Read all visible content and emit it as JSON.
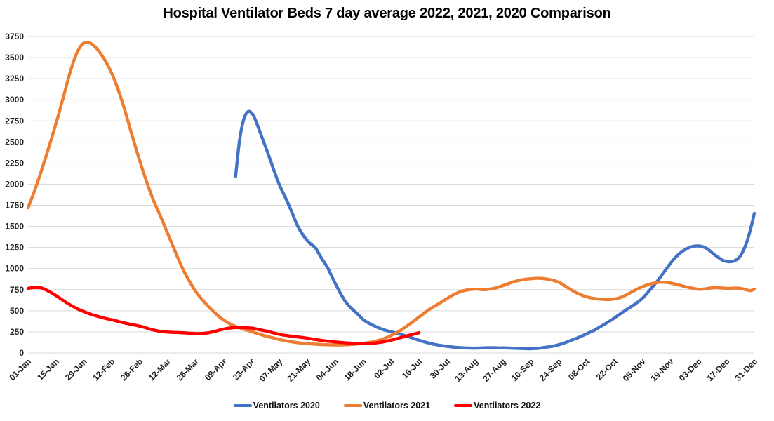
{
  "chart_data": {
    "type": "line",
    "title": "Hospital Ventilator Beds 7 day average 2022, 2021, 2020 Comparison",
    "xlabel": "",
    "ylabel": "",
    "ylim": [
      0,
      3750
    ],
    "y_tick_step": 250,
    "y_ticks": [
      0,
      250,
      500,
      750,
      1000,
      1250,
      1500,
      1750,
      2000,
      2250,
      2500,
      2750,
      3000,
      3250,
      3500,
      3750
    ],
    "x_tick_labels": [
      "01-Jan",
      "15-Jan",
      "29-Jan",
      "12-Feb",
      "26-Feb",
      "12-Mar",
      "26-Mar",
      "09-Apr",
      "23-Apr",
      "07-May",
      "21-May",
      "04-Jun",
      "18-Jun",
      "02-Jul",
      "16-Jul",
      "30-Jul",
      "13-Aug",
      "27-Aug",
      "10-Sep",
      "24-Sep",
      "08-Oct",
      "22-Oct",
      "05-Nov",
      "19-Nov",
      "03-Dec",
      "17-Dec",
      "31-Dec"
    ],
    "grid": "horizontal",
    "gridline_color": "#d9d9d9",
    "label_color": "#1f1f1f",
    "background_color": "#ffffff",
    "legend_position": "bottom-center",
    "series": [
      {
        "name": "Ventilators 2020",
        "color": "#4472C4",
        "points": [
          [
            "15-Apr",
            2090
          ],
          [
            "17-Apr",
            2520
          ],
          [
            "19-Apr",
            2760
          ],
          [
            "21-Apr",
            2855
          ],
          [
            "23-Apr",
            2845
          ],
          [
            "25-Apr",
            2760
          ],
          [
            "28-Apr",
            2570
          ],
          [
            "01-May",
            2380
          ],
          [
            "04-May",
            2180
          ],
          [
            "07-May",
            1990
          ],
          [
            "10-May",
            1840
          ],
          [
            "13-May",
            1680
          ],
          [
            "16-May",
            1510
          ],
          [
            "19-May",
            1390
          ],
          [
            "22-May",
            1305
          ],
          [
            "25-May",
            1245
          ],
          [
            "28-May",
            1125
          ],
          [
            "31-May",
            1015
          ],
          [
            "03-Jun",
            870
          ],
          [
            "06-Jun",
            730
          ],
          [
            "09-Jun",
            610
          ],
          [
            "12-Jun",
            530
          ],
          [
            "15-Jun",
            465
          ],
          [
            "18-Jun",
            395
          ],
          [
            "21-Jun",
            350
          ],
          [
            "24-Jun",
            315
          ],
          [
            "27-Jun",
            285
          ],
          [
            "30-Jun",
            262
          ],
          [
            "03-Jul",
            245
          ],
          [
            "06-Jul",
            225
          ],
          [
            "09-Jul",
            205
          ],
          [
            "12-Jul",
            182
          ],
          [
            "16-Jul",
            150
          ],
          [
            "20-Jul",
            122
          ],
          [
            "24-Jul",
            100
          ],
          [
            "28-Jul",
            85
          ],
          [
            "01-Aug",
            72
          ],
          [
            "05-Aug",
            64
          ],
          [
            "09-Aug",
            59
          ],
          [
            "13-Aug",
            57
          ],
          [
            "17-Aug",
            60
          ],
          [
            "21-Aug",
            63
          ],
          [
            "25-Aug",
            60
          ],
          [
            "29-Aug",
            60
          ],
          [
            "02-Sep",
            56
          ],
          [
            "06-Sep",
            52
          ],
          [
            "10-Sep",
            50
          ],
          [
            "14-Sep",
            56
          ],
          [
            "18-Sep",
            70
          ],
          [
            "22-Sep",
            85
          ],
          [
            "26-Sep",
            112
          ],
          [
            "30-Sep",
            148
          ],
          [
            "04-Oct",
            185
          ],
          [
            "08-Oct",
            228
          ],
          [
            "12-Oct",
            272
          ],
          [
            "16-Oct",
            328
          ],
          [
            "20-Oct",
            385
          ],
          [
            "24-Oct",
            450
          ],
          [
            "28-Oct",
            515
          ],
          [
            "01-Nov",
            575
          ],
          [
            "05-Nov",
            650
          ],
          [
            "09-Nov",
            755
          ],
          [
            "13-Nov",
            870
          ],
          [
            "17-Nov",
            1000
          ],
          [
            "21-Nov",
            1120
          ],
          [
            "25-Nov",
            1205
          ],
          [
            "29-Nov",
            1255
          ],
          [
            "03-Dec",
            1268
          ],
          [
            "07-Dec",
            1240
          ],
          [
            "11-Dec",
            1165
          ],
          [
            "15-Dec",
            1100
          ],
          [
            "18-Dec",
            1082
          ],
          [
            "21-Dec",
            1092
          ],
          [
            "24-Dec",
            1150
          ],
          [
            "27-Dec",
            1300
          ],
          [
            "29-Dec",
            1460
          ],
          [
            "31-Dec",
            1655
          ]
        ]
      },
      {
        "name": "Ventilators 2021",
        "color": "#ED7D31",
        "points": [
          [
            "01-Jan",
            1720
          ],
          [
            "04-Jan",
            1905
          ],
          [
            "07-Jan",
            2110
          ],
          [
            "10-Jan",
            2330
          ],
          [
            "13-Jan",
            2560
          ],
          [
            "16-Jan",
            2800
          ],
          [
            "19-Jan",
            3060
          ],
          [
            "22-Jan",
            3320
          ],
          [
            "25-Jan",
            3530
          ],
          [
            "28-Jan",
            3655
          ],
          [
            "31-Jan",
            3680
          ],
          [
            "03-Feb",
            3640
          ],
          [
            "06-Feb",
            3560
          ],
          [
            "09-Feb",
            3450
          ],
          [
            "12-Feb",
            3310
          ],
          [
            "15-Feb",
            3130
          ],
          [
            "18-Feb",
            2915
          ],
          [
            "21-Feb",
            2670
          ],
          [
            "24-Feb",
            2430
          ],
          [
            "27-Feb",
            2200
          ],
          [
            "02-Mar",
            1990
          ],
          [
            "05-Mar",
            1800
          ],
          [
            "08-Mar",
            1640
          ],
          [
            "11-Mar",
            1470
          ],
          [
            "14-Mar",
            1300
          ],
          [
            "17-Mar",
            1130
          ],
          [
            "20-Mar",
            975
          ],
          [
            "23-Mar",
            845
          ],
          [
            "26-Mar",
            730
          ],
          [
            "29-Mar",
            640
          ],
          [
            "01-Apr",
            560
          ],
          [
            "04-Apr",
            490
          ],
          [
            "07-Apr",
            425
          ],
          [
            "10-Apr",
            375
          ],
          [
            "13-Apr",
            335
          ],
          [
            "16-Apr",
            305
          ],
          [
            "19-Apr",
            282
          ],
          [
            "22-Apr",
            262
          ],
          [
            "25-Apr",
            238
          ],
          [
            "28-Apr",
            215
          ],
          [
            "01-May",
            195
          ],
          [
            "04-May",
            178
          ],
          [
            "07-May",
            160
          ],
          [
            "10-May",
            145
          ],
          [
            "13-May",
            132
          ],
          [
            "16-May",
            122
          ],
          [
            "19-May",
            115
          ],
          [
            "22-May",
            110
          ],
          [
            "25-May",
            104
          ],
          [
            "28-May",
            100
          ],
          [
            "31-May",
            97
          ],
          [
            "03-Jun",
            95
          ],
          [
            "06-Jun",
            95
          ],
          [
            "09-Jun",
            97
          ],
          [
            "12-Jun",
            101
          ],
          [
            "15-Jun",
            107
          ],
          [
            "18-Jun",
            115
          ],
          [
            "21-Jun",
            124
          ],
          [
            "24-Jun",
            138
          ],
          [
            "27-Jun",
            158
          ],
          [
            "30-Jun",
            185
          ],
          [
            "03-Jul",
            220
          ],
          [
            "06-Jul",
            258
          ],
          [
            "09-Jul",
            305
          ],
          [
            "12-Jul",
            355
          ],
          [
            "15-Jul",
            410
          ],
          [
            "18-Jul",
            462
          ],
          [
            "21-Jul",
            515
          ],
          [
            "24-Jul",
            558
          ],
          [
            "27-Jul",
            600
          ],
          [
            "30-Jul",
            645
          ],
          [
            "02-Aug",
            688
          ],
          [
            "05-Aug",
            720
          ],
          [
            "08-Aug",
            742
          ],
          [
            "11-Aug",
            753
          ],
          [
            "14-Aug",
            756
          ],
          [
            "17-Aug",
            750
          ],
          [
            "20-Aug",
            756
          ],
          [
            "23-Aug",
            768
          ],
          [
            "26-Aug",
            790
          ],
          [
            "29-Aug",
            815
          ],
          [
            "01-Sep",
            840
          ],
          [
            "04-Sep",
            860
          ],
          [
            "07-Sep",
            872
          ],
          [
            "10-Sep",
            880
          ],
          [
            "13-Sep",
            885
          ],
          [
            "16-Sep",
            882
          ],
          [
            "19-Sep",
            872
          ],
          [
            "22-Sep",
            855
          ],
          [
            "25-Sep",
            825
          ],
          [
            "28-Sep",
            780
          ],
          [
            "01-Oct",
            735
          ],
          [
            "04-Oct",
            700
          ],
          [
            "07-Oct",
            672
          ],
          [
            "10-Oct",
            653
          ],
          [
            "13-Oct",
            642
          ],
          [
            "16-Oct",
            636
          ],
          [
            "19-Oct",
            634
          ],
          [
            "22-Oct",
            640
          ],
          [
            "25-Oct",
            658
          ],
          [
            "28-Oct",
            690
          ],
          [
            "31-Oct",
            728
          ],
          [
            "03-Nov",
            765
          ],
          [
            "06-Nov",
            795
          ],
          [
            "09-Nov",
            818
          ],
          [
            "12-Nov",
            833
          ],
          [
            "15-Nov",
            838
          ],
          [
            "18-Nov",
            833
          ],
          [
            "21-Nov",
            818
          ],
          [
            "24-Nov",
            800
          ],
          [
            "27-Nov",
            782
          ],
          [
            "30-Nov",
            766
          ],
          [
            "03-Dec",
            755
          ],
          [
            "06-Dec",
            758
          ],
          [
            "09-Dec",
            770
          ],
          [
            "12-Dec",
            775
          ],
          [
            "15-Dec",
            770
          ],
          [
            "18-Dec",
            765
          ],
          [
            "21-Dec",
            768
          ],
          [
            "24-Dec",
            766
          ],
          [
            "27-Dec",
            748
          ],
          [
            "29-Dec",
            738
          ],
          [
            "31-Dec",
            755
          ]
        ]
      },
      {
        "name": "Ventilators 2022",
        "color": "#FF0000",
        "points": [
          [
            "01-Jan",
            765
          ],
          [
            "03-Jan",
            773
          ],
          [
            "05-Jan",
            775
          ],
          [
            "08-Jan",
            768
          ],
          [
            "11-Jan",
            735
          ],
          [
            "14-Jan",
            695
          ],
          [
            "17-Jan",
            648
          ],
          [
            "20-Jan",
            600
          ],
          [
            "23-Jan",
            558
          ],
          [
            "26-Jan",
            520
          ],
          [
            "29-Jan",
            490
          ],
          [
            "01-Feb",
            462
          ],
          [
            "04-Feb",
            440
          ],
          [
            "07-Feb",
            420
          ],
          [
            "10-Feb",
            403
          ],
          [
            "13-Feb",
            388
          ],
          [
            "16-Feb",
            368
          ],
          [
            "19-Feb",
            352
          ],
          [
            "22-Feb",
            337
          ],
          [
            "25-Feb",
            323
          ],
          [
            "28-Feb",
            305
          ],
          [
            "03-Mar",
            283
          ],
          [
            "06-Mar",
            266
          ],
          [
            "09-Mar",
            254
          ],
          [
            "12-Mar",
            247
          ],
          [
            "15-Mar",
            244
          ],
          [
            "18-Mar",
            241
          ],
          [
            "21-Mar",
            237
          ],
          [
            "24-Mar",
            232
          ],
          [
            "27-Mar",
            229
          ],
          [
            "30-Mar",
            232
          ],
          [
            "02-Apr",
            242
          ],
          [
            "05-Apr",
            258
          ],
          [
            "08-Apr",
            278
          ],
          [
            "11-Apr",
            292
          ],
          [
            "14-Apr",
            299
          ],
          [
            "17-Apr",
            301
          ],
          [
            "20-Apr",
            299
          ],
          [
            "23-Apr",
            294
          ],
          [
            "26-Apr",
            281
          ],
          [
            "29-Apr",
            266
          ],
          [
            "02-May",
            250
          ],
          [
            "05-May",
            232
          ],
          [
            "08-May",
            216
          ],
          [
            "11-May",
            205
          ],
          [
            "14-May",
            196
          ],
          [
            "17-May",
            188
          ],
          [
            "20-May",
            179
          ],
          [
            "23-May",
            167
          ],
          [
            "26-May",
            156
          ],
          [
            "29-May",
            146
          ],
          [
            "01-Jun",
            138
          ],
          [
            "04-Jun",
            130
          ],
          [
            "07-Jun",
            124
          ],
          [
            "10-Jun",
            118
          ],
          [
            "13-Jun",
            114
          ],
          [
            "16-Jun",
            112
          ],
          [
            "19-Jun",
            112
          ],
          [
            "22-Jun",
            115
          ],
          [
            "25-Jun",
            121
          ],
          [
            "28-Jun",
            131
          ],
          [
            "01-Jul",
            146
          ],
          [
            "04-Jul",
            164
          ],
          [
            "07-Jul",
            184
          ],
          [
            "10-Jul",
            203
          ],
          [
            "13-Jul",
            222
          ],
          [
            "16-Jul",
            240
          ]
        ]
      }
    ]
  }
}
